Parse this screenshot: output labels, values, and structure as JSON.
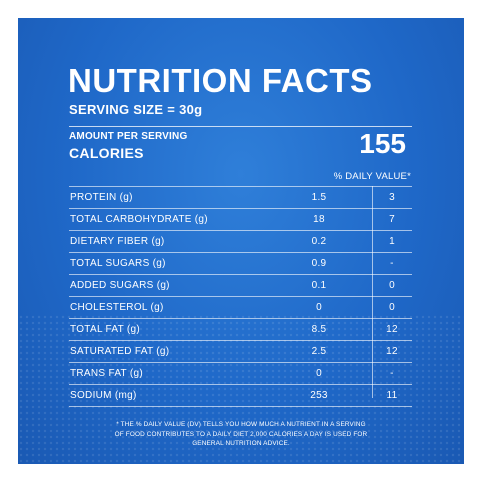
{
  "label": {
    "title": "NUTRITION FACTS",
    "serving_size": "SERVING SIZE = 30g",
    "amount_per_serving": "AMOUNT PER SERVING",
    "calories_label": "CALORIES",
    "calories_value": "155",
    "daily_value_header": "% DAILY VALUE*",
    "rows": [
      {
        "nutrient": "PROTEIN (g)",
        "amount": "1.5",
        "dv": "3"
      },
      {
        "nutrient": "TOTAL CARBOHYDRATE (g)",
        "amount": "18",
        "dv": "7"
      },
      {
        "nutrient": "DIETARY FIBER (g)",
        "amount": "0.2",
        "dv": "1"
      },
      {
        "nutrient": "TOTAL SUGARS (g)",
        "amount": "0.9",
        "dv": "-"
      },
      {
        "nutrient": "ADDED SUGARS (g)",
        "amount": "0.1",
        "dv": "0"
      },
      {
        "nutrient": "CHOLESTEROL (g)",
        "amount": "0",
        "dv": "0"
      },
      {
        "nutrient": "TOTAL FAT (g)",
        "amount": "8.5",
        "dv": "12"
      },
      {
        "nutrient": "SATURATED FAT (g)",
        "amount": "2.5",
        "dv": "12"
      },
      {
        "nutrient": "TRANS FAT (g)",
        "amount": "0",
        "dv": "-"
      },
      {
        "nutrient": "SODIUM (mg)",
        "amount": "253",
        "dv": "11"
      }
    ],
    "footnote": "* THE % DAILY VALUE (DV) TELLS YOU HOW MUCH A NUTRIENT IN A SERVING OF FOOD CONTRIBUTES TO A DAILY DIET 2,000 CALORIES A DAY IS USED FOR GENERAL NUTRITION ADVICE."
  },
  "colors": {
    "panel_blue": "#1f68c8",
    "text": "#ffffff"
  }
}
